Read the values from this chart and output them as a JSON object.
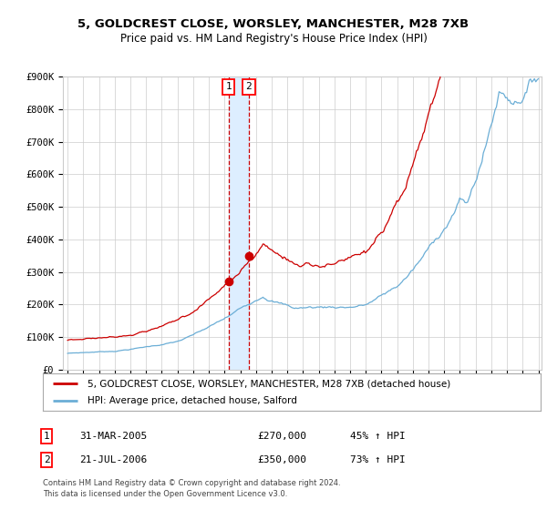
{
  "title_line1": "5, GOLDCREST CLOSE, WORSLEY, MANCHESTER, M28 7XB",
  "title_line2": "Price paid vs. HM Land Registry's House Price Index (HPI)",
  "legend_line1": "5, GOLDCREST CLOSE, WORSLEY, MANCHESTER, M28 7XB (detached house)",
  "legend_line2": "HPI: Average price, detached house, Salford",
  "transaction1_date": "31-MAR-2005",
  "transaction1_price": "£270,000",
  "transaction1_hpi": "45% ↑ HPI",
  "transaction2_date": "21-JUL-2006",
  "transaction2_price": "£350,000",
  "transaction2_hpi": "73% ↑ HPI",
  "footer": "Contains HM Land Registry data © Crown copyright and database right 2024.\nThis data is licensed under the Open Government Licence v3.0.",
  "hpi_color": "#6baed6",
  "property_color": "#cc0000",
  "vband_color": "#ddeeff",
  "marker_color": "#cc0000",
  "grid_color": "#cccccc",
  "background_color": "#ffffff",
  "ylim": [
    0,
    900000
  ],
  "yticks": [
    0,
    100000,
    200000,
    300000,
    400000,
    500000,
    600000,
    700000,
    800000,
    900000
  ],
  "ytick_labels": [
    "£0",
    "£100K",
    "£200K",
    "£300K",
    "£400K",
    "£500K",
    "£600K",
    "£700K",
    "£800K",
    "£900K"
  ],
  "year_start": 1995,
  "year_end": 2025,
  "transaction1_year": 2005.25,
  "transaction2_year": 2006.55,
  "transaction1_value": 270000,
  "transaction2_value": 350000
}
